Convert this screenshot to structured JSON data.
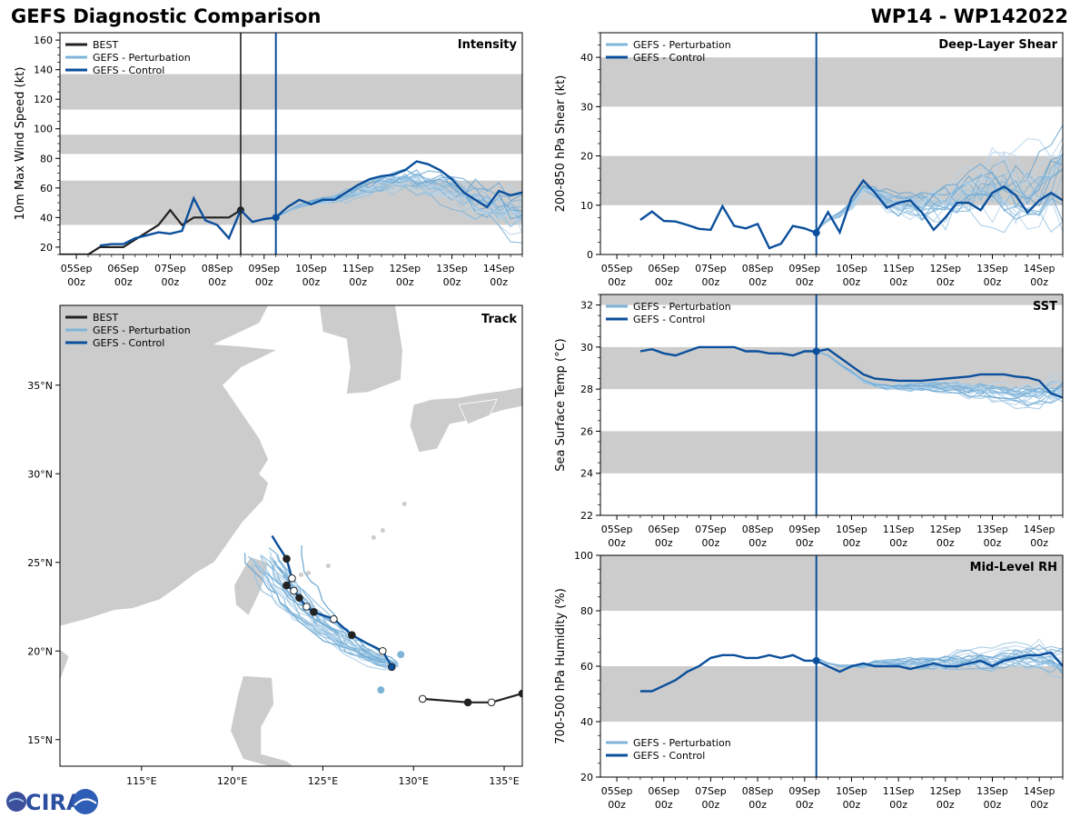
{
  "header": {
    "title": "GEFS Diagnostic Comparison",
    "storm_id": "WP14 - WP142022"
  },
  "logo": {
    "text": "CIRA"
  },
  "colors": {
    "best": "#222222",
    "perturbation": "#7fb4d8",
    "control": "#0b4f9c",
    "band": "#cccccc"
  },
  "legend": {
    "best": "BEST",
    "perturbation": "GEFS - Perturbation",
    "control": "GEFS - Control"
  },
  "time_axis": {
    "ticks": [
      {
        "day": 0,
        "label": "05Sep"
      },
      {
        "day": 1,
        "label": "06Sep"
      },
      {
        "day": 2,
        "label": "07Sep"
      },
      {
        "day": 3,
        "label": "08Sep"
      },
      {
        "day": 4,
        "label": "09Sep"
      },
      {
        "day": 5,
        "label": "10Sep"
      },
      {
        "day": 6,
        "label": "11Sep"
      },
      {
        "day": 7,
        "label": "12Sep"
      },
      {
        "day": 8,
        "label": "13Sep"
      },
      {
        "day": 9,
        "label": "14Sep"
      }
    ],
    "sublabel": "00z",
    "xlim": [
      -0.35,
      9.5
    ],
    "init_day": 4.25,
    "best_end_day": 3.5
  },
  "chart_data": [
    {
      "id": "intensity",
      "type": "line",
      "title": "Intensity",
      "ylabel": "10m Max Wind Speed (kt)",
      "ylim": [
        15,
        165
      ],
      "yticks": [
        20,
        40,
        60,
        80,
        100,
        120,
        140,
        160
      ],
      "bands": [
        [
          35,
          65
        ],
        [
          83,
          96
        ],
        [
          113,
          137
        ]
      ],
      "legend_items": [
        "best",
        "perturbation",
        "control"
      ],
      "show_best_line": true,
      "best": {
        "x": [
          -0.35,
          0,
          0.25,
          0.5,
          0.75,
          1,
          1.25,
          1.5,
          1.75,
          2,
          2.25,
          2.5,
          2.75,
          3,
          3.25,
          3.5
        ],
        "y": [
          15,
          15,
          15,
          20,
          20,
          20,
          25,
          30,
          35,
          45,
          35,
          40,
          40,
          40,
          40,
          45
        ]
      },
      "control": {
        "x": [
          0.5,
          0.75,
          1,
          1.25,
          1.5,
          1.75,
          2,
          2.25,
          2.5,
          2.75,
          3,
          3.25,
          3.5,
          3.75,
          4,
          4.25,
          4.5,
          4.75,
          5,
          5.25,
          5.5,
          5.75,
          6,
          6.25,
          6.5,
          6.75,
          7,
          7.25,
          7.5,
          7.75,
          8,
          8.25,
          8.5,
          8.75,
          9,
          9.25,
          9.5
        ],
        "y": [
          21,
          22,
          22,
          26,
          28,
          30,
          29,
          31,
          53,
          38,
          35,
          26,
          45,
          37,
          39,
          40,
          47,
          52,
          49,
          52,
          52,
          57,
          62,
          66,
          68,
          69,
          72,
          78,
          76,
          72,
          66,
          57,
          52,
          47,
          58,
          55,
          57
        ]
      },
      "perturbation_base": {
        "x": [
          4.25,
          4.5,
          4.75,
          5,
          5.25,
          5.5,
          5.75,
          6,
          6.25,
          6.5,
          6.75,
          7,
          7.25,
          7.5,
          7.75,
          8,
          8.25,
          8.5,
          8.75,
          9,
          9.25,
          9.5
        ],
        "y": [
          40,
          44,
          48,
          50,
          51,
          53,
          55,
          57,
          60,
          62,
          63,
          64,
          63,
          62,
          60,
          57,
          53,
          50,
          47,
          45,
          42,
          40
        ]
      },
      "perturbation_count": 20,
      "perturbation_spread": 15
    },
    {
      "id": "shear",
      "type": "line",
      "title": "Deep-Layer Shear",
      "ylabel": "200-850 hPa Shear (kt)",
      "ylim": [
        0,
        45
      ],
      "yticks": [
        0,
        10,
        20,
        30,
        40
      ],
      "bands": [
        [
          10,
          20
        ],
        [
          30,
          40
        ]
      ],
      "legend_items": [
        "perturbation",
        "control"
      ],
      "control": {
        "x": [
          0.5,
          0.75,
          1,
          1.25,
          1.5,
          1.75,
          2,
          2.25,
          2.5,
          2.75,
          3,
          3.25,
          3.5,
          3.75,
          4,
          4.25,
          4.5,
          4.75,
          5,
          5.25,
          5.5,
          5.75,
          6,
          6.25,
          6.5,
          6.75,
          7,
          7.25,
          7.5,
          7.75,
          8,
          8.25,
          8.5,
          8.75,
          9,
          9.25,
          9.5
        ],
        "y": [
          7,
          8.7,
          6.8,
          6.7,
          6,
          5.2,
          5,
          9.8,
          5.8,
          5.3,
          6.2,
          1.3,
          2.2,
          5.8,
          5.3,
          4.4,
          8.6,
          4.5,
          11.5,
          15,
          12.5,
          9.5,
          10.5,
          11,
          8.5,
          5,
          7.5,
          10.5,
          10.5,
          9,
          12.5,
          13.8,
          12,
          8.5,
          11,
          12.5,
          11
        ]
      },
      "perturbation_base": {
        "x": [
          4.25,
          4.5,
          4.75,
          5,
          5.25,
          5.5,
          5.75,
          6,
          6.25,
          6.5,
          6.75,
          7,
          7.25,
          7.5,
          7.75,
          8,
          8.25,
          8.5,
          8.75,
          9,
          9.25,
          9.5
        ],
        "y": [
          5,
          7,
          8,
          10,
          13,
          13,
          11,
          10,
          10,
          10,
          10,
          10,
          11,
          12,
          13,
          13,
          13,
          12,
          12,
          13,
          14,
          16
        ]
      },
      "perturbation_count": 20,
      "perturbation_spread": 8
    },
    {
      "id": "sst",
      "type": "line",
      "title": "SST",
      "ylabel": "Sea Surface Temp (°C)",
      "ylim": [
        22,
        32.5
      ],
      "yticks": [
        22,
        24,
        26,
        28,
        30,
        32
      ],
      "bands": [
        [
          24,
          26
        ],
        [
          28,
          30
        ],
        [
          32,
          32.5
        ]
      ],
      "legend_items": [
        "perturbation",
        "control"
      ],
      "control": {
        "x": [
          0.5,
          0.75,
          1,
          1.25,
          1.5,
          1.75,
          2,
          2.25,
          2.5,
          2.75,
          3,
          3.25,
          3.5,
          3.75,
          4,
          4.25,
          4.5,
          4.75,
          5,
          5.25,
          5.5,
          5.75,
          6,
          6.25,
          6.5,
          6.75,
          7,
          7.25,
          7.5,
          7.75,
          8,
          8.25,
          8.5,
          8.75,
          9,
          9.25,
          9.5
        ],
        "y": [
          29.8,
          29.9,
          29.7,
          29.6,
          29.8,
          30,
          30,
          30,
          30,
          29.8,
          29.8,
          29.7,
          29.7,
          29.6,
          29.8,
          29.8,
          29.9,
          29.5,
          29.1,
          28.7,
          28.5,
          28.45,
          28.4,
          28.4,
          28.4,
          28.45,
          28.5,
          28.55,
          28.6,
          28.7,
          28.7,
          28.7,
          28.6,
          28.55,
          28.4,
          27.8,
          27.6
        ]
      },
      "perturbation_base": {
        "x": [
          4.25,
          4.5,
          4.75,
          5,
          5.25,
          5.5,
          5.75,
          6,
          6.25,
          6.5,
          6.75,
          7,
          7.25,
          7.5,
          7.75,
          8,
          8.25,
          8.5,
          8.75,
          9,
          9.25,
          9.5
        ],
        "y": [
          29.8,
          29.6,
          29.2,
          28.8,
          28.4,
          28.2,
          28.1,
          28.1,
          28.1,
          28.1,
          28.1,
          28.1,
          28.1,
          28.0,
          28.0,
          27.9,
          27.8,
          27.7,
          27.7,
          27.8,
          27.9,
          28.0
        ]
      },
      "perturbation_count": 20,
      "perturbation_spread": 0.6
    },
    {
      "id": "rh",
      "type": "line",
      "title": "Mid-Level RH",
      "ylabel": "700-500 hPa Humidity (%)",
      "ylim": [
        20,
        100
      ],
      "yticks": [
        20,
        40,
        60,
        80,
        100
      ],
      "bands": [
        [
          40,
          60
        ],
        [
          80,
          100
        ]
      ],
      "legend_items": [
        "perturbation",
        "control"
      ],
      "legend_position": "bottom-left",
      "control": {
        "x": [
          0.5,
          0.75,
          1,
          1.25,
          1.5,
          1.75,
          2,
          2.25,
          2.5,
          2.75,
          3,
          3.25,
          3.5,
          3.75,
          4,
          4.25,
          4.5,
          4.75,
          5,
          5.25,
          5.5,
          5.75,
          6,
          6.25,
          6.5,
          6.75,
          7,
          7.25,
          7.5,
          7.75,
          8,
          8.25,
          8.5,
          8.75,
          9,
          9.25,
          9.5
        ],
        "y": [
          51,
          51,
          53,
          55,
          58,
          60,
          63,
          64,
          64,
          63,
          63,
          64,
          63,
          64,
          62,
          62,
          60,
          58,
          60,
          61,
          60,
          60,
          60,
          59,
          60,
          61,
          60,
          60,
          61,
          62,
          60,
          62,
          63,
          64,
          64,
          65,
          60
        ]
      },
      "perturbation_base": {
        "x": [
          4.25,
          4.5,
          4.75,
          5,
          5.25,
          5.5,
          5.75,
          6,
          6.25,
          6.5,
          6.75,
          7,
          7.25,
          7.5,
          7.75,
          8,
          8.25,
          8.5,
          8.75,
          9,
          9.25,
          9.5
        ],
        "y": [
          63,
          61,
          60,
          60,
          60,
          61,
          61,
          61,
          61,
          61,
          61,
          61,
          62,
          62,
          62,
          62,
          63,
          63,
          63,
          63,
          62,
          61
        ]
      },
      "perturbation_count": 20,
      "perturbation_spread": 5
    },
    {
      "id": "track",
      "type": "scatter",
      "title": "Track",
      "xlim": [
        110.5,
        136
      ],
      "ylim": [
        13.5,
        39.5
      ],
      "xticks": [
        {
          "v": 115,
          "label": "115°E"
        },
        {
          "v": 120,
          "label": "120°E"
        },
        {
          "v": 125,
          "label": "125°E"
        },
        {
          "v": 130,
          "label": "130°E"
        },
        {
          "v": 135,
          "label": "135°E"
        }
      ],
      "yticks": [
        {
          "v": 15,
          "label": "15°N"
        },
        {
          "v": 20,
          "label": "20°N"
        },
        {
          "v": 25,
          "label": "25°N"
        },
        {
          "v": 30,
          "label": "30°N"
        },
        {
          "v": 35,
          "label": "35°N"
        }
      ],
      "legend_items": [
        "best",
        "perturbation",
        "control"
      ],
      "best": {
        "lon": [
          136,
          134.3,
          133,
          130.5
        ],
        "lat": [
          17.6,
          17.1,
          17.1,
          17.3
        ]
      },
      "control": {
        "lon": [
          128.8,
          128.3,
          127.5,
          126.6,
          125.6,
          124.5,
          124.1,
          123.7,
          123.4,
          123,
          123.3,
          123,
          122.5,
          122.2
        ],
        "lat": [
          19.1,
          20,
          20.4,
          20.9,
          21.8,
          22.2,
          22.5,
          23,
          23.4,
          23.7,
          24.1,
          25.2,
          26,
          26.5
        ]
      },
      "control_markers": [
        {
          "lon": 128.8,
          "lat": 19.1,
          "fill": "control"
        },
        {
          "lon": 128.3,
          "lat": 20,
          "fill": "white"
        },
        {
          "lon": 126.6,
          "lat": 20.9,
          "fill": "best"
        },
        {
          "lon": 125.6,
          "lat": 21.8,
          "fill": "white"
        },
        {
          "lon": 124.5,
          "lat": 22.2,
          "fill": "best"
        },
        {
          "lon": 124.1,
          "lat": 22.5,
          "fill": "white"
        },
        {
          "lon": 123.7,
          "lat": 23,
          "fill": "best"
        },
        {
          "lon": 123.4,
          "lat": 23.4,
          "fill": "white"
        },
        {
          "lon": 123,
          "lat": 23.7,
          "fill": "best"
        },
        {
          "lon": 123.3,
          "lat": 24.1,
          "fill": "white"
        },
        {
          "lon": 123,
          "lat": 25.2,
          "fill": "best"
        }
      ],
      "best_markers": [
        {
          "lon": 136,
          "lat": 17.6,
          "fill": "best"
        },
        {
          "lon": 134.3,
          "lat": 17.1,
          "fill": "white"
        },
        {
          "lon": 133,
          "lat": 17.1,
          "fill": "best"
        },
        {
          "lon": 130.5,
          "lat": 17.3,
          "fill": "white"
        }
      ],
      "perturbation_count": 22,
      "perturbation_extra_markers": [
        {
          "lon": 129.3,
          "lat": 19.8
        },
        {
          "lon": 128.2,
          "lat": 17.8
        }
      ]
    }
  ]
}
